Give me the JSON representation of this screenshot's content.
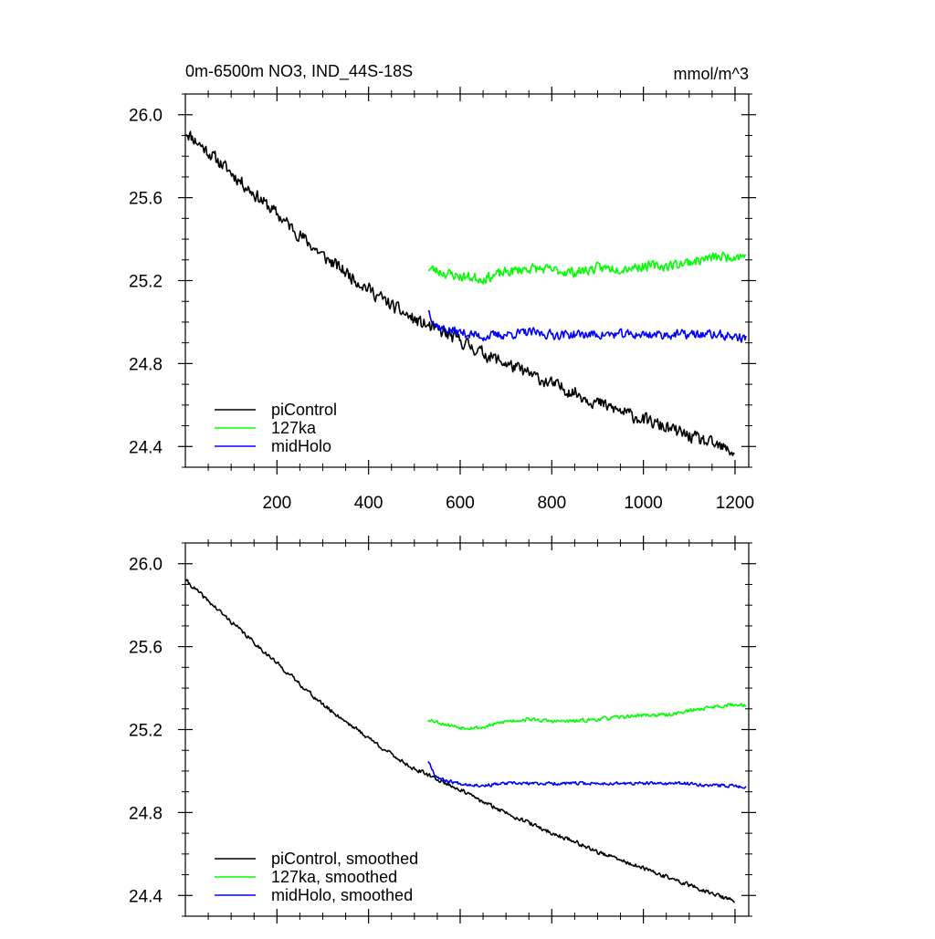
{
  "chart_data": [
    {
      "type": "line",
      "title_left": "0m-6500m NO3, IND_44S-18S",
      "title_right": "mmol/m^3",
      "xlim": [
        0,
        1230
      ],
      "ylim": [
        24.3,
        26.1
      ],
      "xticks": [
        200,
        400,
        600,
        800,
        1000,
        1200
      ],
      "xtick_labels": [
        "200",
        "400",
        "600",
        "800",
        "1000",
        "1200"
      ],
      "yticks": [
        24.4,
        24.8,
        25.2,
        25.6,
        26.0
      ],
      "ytick_labels": [
        "24.4",
        "24.8",
        "25.2",
        "25.6",
        "26.0"
      ],
      "grid": false,
      "legend_position": "bottom-left",
      "series": [
        {
          "name": "piControl",
          "color": "#000000",
          "noise": 0.028,
          "x": [
            1,
            20,
            60,
            100,
            150,
            200,
            250,
            300,
            350,
            400,
            450,
            500,
            550,
            600,
            650,
            700,
            750,
            800,
            850,
            900,
            950,
            1000,
            1050,
            1100,
            1150,
            1200
          ],
          "y": [
            25.92,
            25.88,
            25.8,
            25.72,
            25.62,
            25.52,
            25.42,
            25.32,
            25.24,
            25.16,
            25.08,
            25.01,
            24.96,
            24.91,
            24.85,
            24.8,
            24.75,
            24.7,
            24.66,
            24.61,
            24.57,
            24.53,
            24.49,
            24.45,
            24.41,
            24.37
          ]
        },
        {
          "name": "127ka",
          "color": "#00ff00",
          "noise": 0.022,
          "x": [
            530,
            560,
            600,
            650,
            700,
            750,
            800,
            850,
            900,
            950,
            1000,
            1050,
            1100,
            1150,
            1200,
            1225
          ],
          "y": [
            25.26,
            25.24,
            25.22,
            25.21,
            25.24,
            25.26,
            25.25,
            25.24,
            25.26,
            25.26,
            25.27,
            25.27,
            25.29,
            25.31,
            25.32,
            25.32
          ]
        },
        {
          "name": "midHolo",
          "color": "#0000ff",
          "noise": 0.02,
          "x": [
            530,
            535,
            545,
            560,
            600,
            650,
            700,
            750,
            800,
            850,
            900,
            950,
            1000,
            1050,
            1100,
            1150,
            1200,
            1225
          ],
          "y": [
            25.06,
            25.04,
            24.99,
            24.97,
            24.95,
            24.93,
            24.94,
            24.95,
            24.94,
            24.94,
            24.94,
            24.94,
            24.94,
            24.94,
            24.94,
            24.94,
            24.93,
            24.92
          ]
        }
      ]
    },
    {
      "type": "line",
      "xlim": [
        0,
        1230
      ],
      "ylim": [
        24.3,
        26.1
      ],
      "xticks": [
        200,
        400,
        600,
        800,
        1000,
        1200
      ],
      "yticks": [
        24.4,
        24.8,
        25.2,
        25.6,
        26.0
      ],
      "ytick_labels": [
        "24.4",
        "24.8",
        "25.2",
        "25.6",
        "26.0"
      ],
      "grid": false,
      "legend_position": "bottom-left",
      "series": [
        {
          "name": "piControl, smoothed",
          "color": "#000000",
          "noise": 0.009,
          "x": [
            1,
            20,
            60,
            100,
            150,
            200,
            250,
            300,
            350,
            400,
            450,
            500,
            550,
            600,
            650,
            700,
            750,
            800,
            850,
            900,
            950,
            1000,
            1050,
            1100,
            1150,
            1200
          ],
          "y": [
            25.92,
            25.88,
            25.8,
            25.72,
            25.62,
            25.52,
            25.42,
            25.32,
            25.24,
            25.16,
            25.08,
            25.01,
            24.96,
            24.91,
            24.85,
            24.8,
            24.75,
            24.7,
            24.66,
            24.61,
            24.57,
            24.53,
            24.49,
            24.45,
            24.41,
            24.37
          ]
        },
        {
          "name": "127ka, smoothed",
          "color": "#00ff00",
          "noise": 0.008,
          "x": [
            530,
            560,
            600,
            650,
            700,
            750,
            800,
            850,
            900,
            950,
            1000,
            1050,
            1100,
            1150,
            1200,
            1225
          ],
          "y": [
            25.25,
            25.23,
            25.21,
            25.21,
            25.24,
            25.25,
            25.24,
            25.24,
            25.25,
            25.26,
            25.27,
            25.27,
            25.29,
            25.31,
            25.32,
            25.32
          ]
        },
        {
          "name": "midHolo, smoothed",
          "color": "#0000ff",
          "noise": 0.007,
          "x": [
            530,
            535,
            545,
            560,
            600,
            650,
            700,
            750,
            800,
            850,
            900,
            950,
            1000,
            1050,
            1100,
            1150,
            1200,
            1225
          ],
          "y": [
            25.05,
            25.03,
            24.98,
            24.96,
            24.94,
            24.93,
            24.94,
            24.94,
            24.94,
            24.94,
            24.94,
            24.94,
            24.94,
            24.94,
            24.94,
            24.93,
            24.93,
            24.92
          ]
        }
      ]
    }
  ]
}
